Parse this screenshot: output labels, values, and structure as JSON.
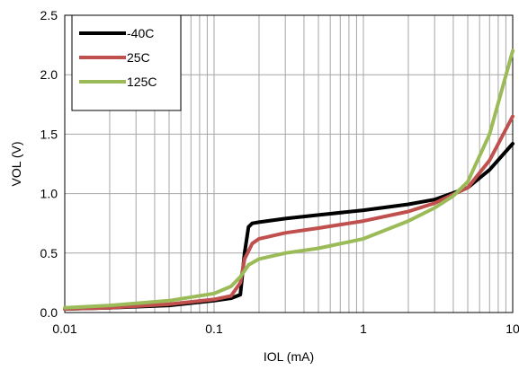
{
  "chart_data": {
    "type": "line",
    "title": "",
    "xlabel": "IOL (mA)",
    "ylabel": "VOL (V)",
    "x_scale": "log",
    "xlim": [
      0.01,
      10
    ],
    "ylim": [
      0,
      2.5
    ],
    "x_ticks": [
      0.01,
      0.1,
      1,
      10
    ],
    "x_tick_labels": [
      "0.01",
      "0.1",
      "1",
      "10"
    ],
    "y_ticks": [
      0,
      0.5,
      1,
      1.5,
      2,
      2.5
    ],
    "y_tick_labels": [
      "0.0",
      "0.5",
      "1.0",
      "1.5",
      "2.0",
      "2.5"
    ],
    "grid": true,
    "legend_position": "top-left",
    "series": [
      {
        "name": "-40C",
        "color": "#000000",
        "x": [
          0.01,
          0.02,
          0.05,
          0.1,
          0.13,
          0.15,
          0.16,
          0.17,
          0.18,
          0.2,
          0.3,
          0.5,
          1,
          2,
          3,
          5,
          7,
          10
        ],
        "y": [
          0.03,
          0.04,
          0.06,
          0.1,
          0.12,
          0.15,
          0.5,
          0.72,
          0.75,
          0.76,
          0.79,
          0.82,
          0.86,
          0.91,
          0.95,
          1.05,
          1.2,
          1.42
        ]
      },
      {
        "name": "25C",
        "color": "#c0504d",
        "x": [
          0.01,
          0.02,
          0.05,
          0.1,
          0.13,
          0.15,
          0.16,
          0.18,
          0.2,
          0.3,
          0.5,
          1,
          2,
          3,
          5,
          7,
          10
        ],
        "y": [
          0.03,
          0.04,
          0.07,
          0.11,
          0.14,
          0.25,
          0.45,
          0.58,
          0.62,
          0.67,
          0.71,
          0.77,
          0.85,
          0.92,
          1.05,
          1.28,
          1.65
        ]
      },
      {
        "name": "125C",
        "color": "#9bbb59",
        "x": [
          0.01,
          0.02,
          0.05,
          0.1,
          0.13,
          0.15,
          0.17,
          0.2,
          0.3,
          0.5,
          1,
          2,
          3,
          4,
          5,
          7,
          10
        ],
        "y": [
          0.04,
          0.06,
          0.1,
          0.16,
          0.22,
          0.3,
          0.4,
          0.45,
          0.5,
          0.54,
          0.62,
          0.77,
          0.88,
          0.98,
          1.1,
          1.5,
          2.2
        ]
      }
    ]
  }
}
